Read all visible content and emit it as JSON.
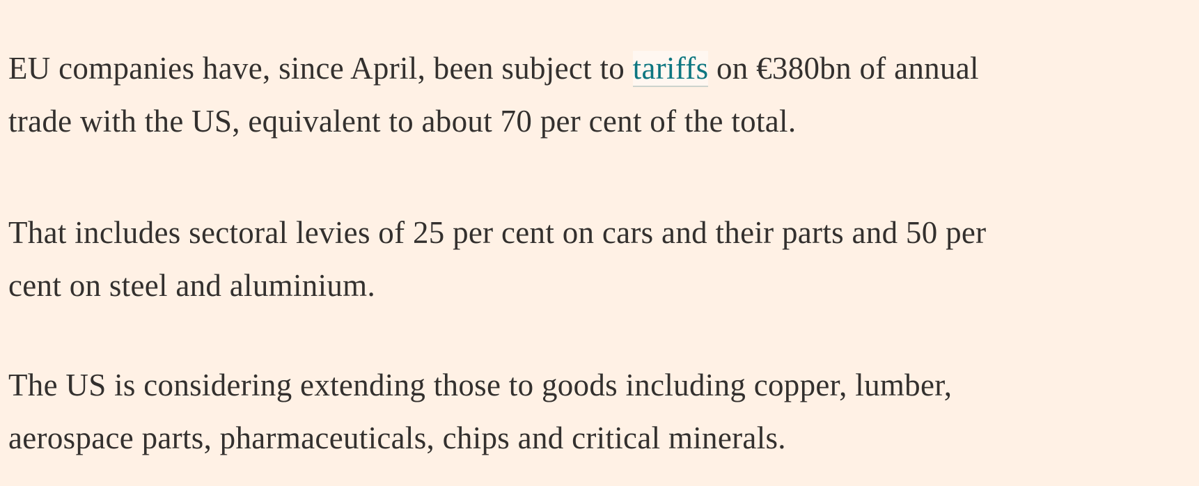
{
  "page": {
    "background_color": "#FFF1E5",
    "text_color": "#33302E",
    "link_color": "#0D7680",
    "link_underline_color": "#CCD3CD"
  },
  "article": {
    "p1": {
      "l1_before_link": "EU companies have, since April, been subject to ",
      "l1_link": "tariffs",
      "l1_after_link": " on €380bn of annual",
      "l2": "trade with the US, equivalent to about 70 per cent of the total.",
      "full_text": "EU companies have, since April, been subject to tariffs on €380bn of annual trade with the US, equivalent to about 70 per cent of the total."
    },
    "p2": {
      "l1": "That includes sectoral levies of 25 per cent on cars and their parts and 50 per",
      "l2": "cent on steel and aluminium.",
      "full_text": "That includes sectoral levies of 25 per cent on cars and their parts and 50 per cent on steel and aluminium."
    },
    "p3": {
      "l1": "The US is considering extending those to goods including copper, lumber,",
      "l2": "aerospace parts, pharmaceuticals, chips and critical minerals.",
      "full_text": "The US is considering extending those to goods including copper, lumber, aerospace parts, pharmaceuticals, chips and critical minerals."
    }
  }
}
